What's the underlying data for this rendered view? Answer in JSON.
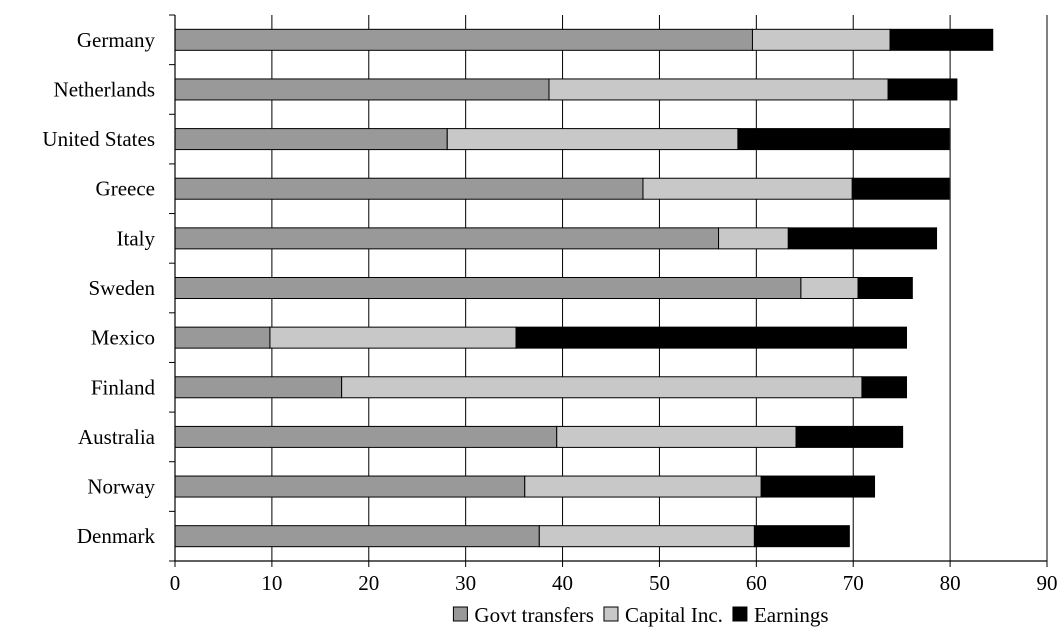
{
  "chart_data": {
    "type": "bar",
    "orientation": "horizontal",
    "stacked": true,
    "categories": [
      "Germany",
      "Netherlands",
      "United States",
      "Greece",
      "Italy",
      "Sweden",
      "Mexico",
      "Finland",
      "Australia",
      "Norway",
      "Denmark"
    ],
    "series": [
      {
        "name": "Govt transfers",
        "color": "#999999",
        "values": [
          59.6,
          38.6,
          28.1,
          48.3,
          56.1,
          64.6,
          9.8,
          17.2,
          39.4,
          36.1,
          37.6
        ]
      },
      {
        "name": "Capital Inc.",
        "color": "#c8c8c8",
        "values": [
          14.2,
          35.0,
          30.0,
          21.6,
          7.2,
          5.9,
          25.4,
          53.7,
          24.7,
          24.4,
          22.2
        ]
      },
      {
        "name": "Earnings",
        "color": "#000000",
        "values": [
          10.6,
          7.1,
          21.8,
          10.0,
          15.3,
          5.6,
          40.3,
          4.6,
          11.0,
          11.7,
          9.8
        ]
      }
    ],
    "xlim": [
      0,
      90
    ],
    "xticks": [
      0,
      10,
      20,
      30,
      40,
      50,
      60,
      70,
      80,
      90
    ],
    "grid": "vertical",
    "legend_position": "bottom"
  }
}
